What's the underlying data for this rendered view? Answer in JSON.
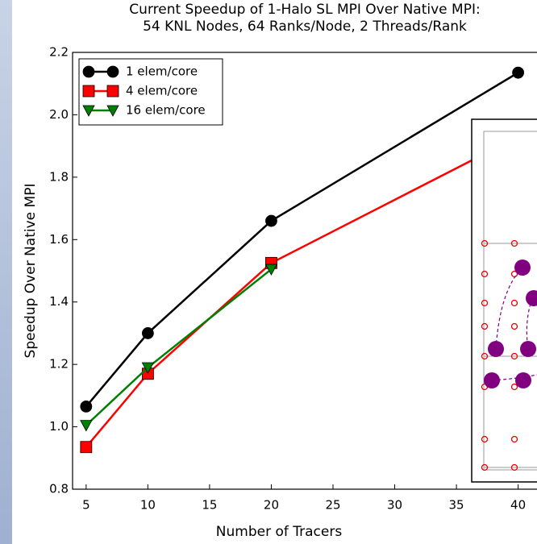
{
  "chart_data": {
    "type": "line",
    "title": "Current Speedup of 1-Halo SL MPI Over Native MPI:",
    "subtitle": "54 KNL Nodes, 64 Ranks/Node, 2 Threads/Rank",
    "x_label": "Number of Tracers",
    "y_label": "Speedup Over Native MPI",
    "x": [
      5,
      10,
      20,
      40
    ],
    "series": [
      {
        "name": "1 elem/core",
        "color": "#000000",
        "marker": "o",
        "values": [
          1.065,
          1.3,
          1.66,
          2.135
        ]
      },
      {
        "name": "4 elem/core",
        "color": "#ff0000",
        "marker": "s",
        "values": [
          0.935,
          1.17,
          1.525,
          1.93
        ]
      },
      {
        "name": "16 elem/core",
        "color": "#008000",
        "marker": "v",
        "values": [
          1.005,
          1.19,
          1.505,
          null
        ]
      }
    ],
    "xlim": [
      3.9,
      42.9
    ],
    "ylim": [
      0.8,
      2.2
    ],
    "xticks": [
      5,
      10,
      15,
      20,
      25,
      30,
      35,
      40
    ],
    "yticks": [
      0.8,
      {
        "value": 1,
        "label": "1.0"
      },
      1.2,
      1.4,
      1.6,
      1.8,
      {
        "value": 2,
        "label": "2.0"
      },
      2.2
    ],
    "legend": "upper left"
  }
}
